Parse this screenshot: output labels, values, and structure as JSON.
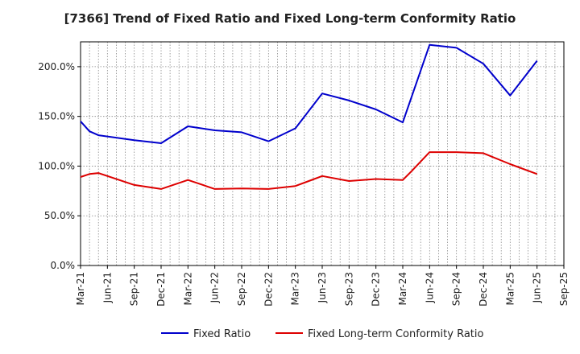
{
  "chart_data": {
    "type": "line",
    "title": "[7366]  Trend of Fixed Ratio and Fixed Long-term Conformity Ratio",
    "xlabel": "",
    "ylabel": "",
    "x_range": [
      "2021-03",
      "2025-09"
    ],
    "ylim": [
      0,
      225
    ],
    "y_ticks": [
      0,
      50,
      100,
      150,
      200
    ],
    "y_tick_labels": [
      "0.0%",
      "50.0%",
      "100.0%",
      "150.0%",
      "200.0%"
    ],
    "x_tick_labels": [
      "Mar-21",
      "Jun-21",
      "Sep-21",
      "Dec-21",
      "Mar-22",
      "Jun-22",
      "Sep-22",
      "Dec-22",
      "Mar-23",
      "Jun-23",
      "Sep-23",
      "Dec-23",
      "Mar-24",
      "Jun-24",
      "Sep-24",
      "Dec-24",
      "Mar-25",
      "Jun-25",
      "Sep-25"
    ],
    "grid": true,
    "legend_position": "bottom",
    "series": [
      {
        "name": "Fixed Ratio",
        "color": "#0000cc",
        "x": [
          0.0,
          1.0,
          2.0,
          6.0,
          9.0,
          12.0,
          15.0,
          18.0,
          21.0,
          24.0,
          27.0,
          30.0,
          33.0,
          36.0,
          39.0,
          42.0,
          45.0,
          48.0,
          51.0,
          54.0
        ],
        "values": [
          145,
          135,
          131,
          126,
          123,
          140,
          136,
          134,
          125,
          138,
          173,
          166,
          157,
          144,
          222,
          219,
          203,
          171,
          206,
          null
        ]
      },
      {
        "name": "Fixed Long-term Conformity Ratio",
        "color": "#dd0000",
        "x": [
          0.0,
          1.0,
          2.0,
          6.0,
          9.0,
          12.0,
          15.0,
          18.0,
          21.0,
          24.0,
          27.0,
          30.0,
          33.0,
          36.0,
          37.0,
          39.0,
          42.0,
          45.0,
          48.0,
          51.0,
          54.0
        ],
        "values": [
          89,
          92,
          93,
          81,
          77,
          86,
          77,
          77.5,
          77,
          80,
          90,
          85,
          87,
          86,
          95,
          114,
          114,
          113,
          102,
          92,
          null
        ]
      }
    ]
  }
}
